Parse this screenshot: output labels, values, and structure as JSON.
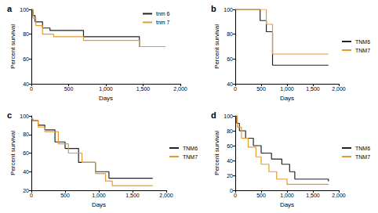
{
  "chart_data": [
    {
      "type": "line",
      "title": "a",
      "x_label": "Days",
      "y_label": "Percent survival",
      "xlim": [
        0,
        2000
      ],
      "xticks": [
        0,
        500,
        1000,
        1500,
        2000
      ],
      "ylim": [
        40,
        100
      ],
      "yticks": [
        40,
        60,
        80,
        100
      ],
      "grid": false,
      "legend": "upper right",
      "line_style": "step",
      "series": [
        {
          "name": "tnm 6",
          "color": "#222222",
          "x": [
            0,
            20,
            50,
            150,
            250,
            700,
            1450,
            1800
          ],
          "values": [
            100,
            95,
            90,
            85,
            83,
            78,
            70,
            70
          ]
        },
        {
          "name": "tnm 7",
          "color": "#e69a2e",
          "x": [
            0,
            20,
            60,
            150,
            300,
            700,
            1450,
            1800
          ],
          "values": [
            100,
            93,
            87,
            80,
            78,
            75,
            70,
            70
          ]
        }
      ]
    },
    {
      "type": "line",
      "title": "b",
      "x_label": "Days",
      "y_label": "Percent survival",
      "xlim": [
        0,
        2000
      ],
      "xticks": [
        0,
        500,
        1000,
        1500,
        2000
      ],
      "ylim": [
        40,
        100
      ],
      "yticks": [
        40,
        60,
        80,
        100
      ],
      "grid": false,
      "legend": "right",
      "line_style": "step",
      "series": [
        {
          "name": "TNM6",
          "color": "#222222",
          "x": [
            0,
            480,
            600,
            720,
            1800
          ],
          "values": [
            100,
            91,
            82,
            55,
            55
          ]
        },
        {
          "name": "TNM7",
          "color": "#e69a2e",
          "x": [
            0,
            600,
            720,
            1800
          ],
          "values": [
            100,
            88,
            64,
            64
          ]
        }
      ]
    },
    {
      "type": "line",
      "title": "c",
      "x_label": "Days",
      "y_label": "Percent survival",
      "xlim": [
        0,
        2000
      ],
      "xticks": [
        0,
        500,
        1000,
        1500,
        2000
      ],
      "ylim": [
        20,
        100
      ],
      "yticks": [
        20,
        40,
        60,
        80,
        100
      ],
      "grid": false,
      "legend": "right",
      "line_style": "step",
      "series": [
        {
          "name": "TNM6",
          "color": "#222222",
          "x": [
            0,
            20,
            100,
            200,
            350,
            500,
            700,
            950,
            1150,
            1800
          ],
          "values": [
            97,
            95,
            90,
            85,
            72,
            65,
            50,
            40,
            33,
            33
          ]
        },
        {
          "name": "TNM7",
          "color": "#e69a2e",
          "x": [
            0,
            20,
            100,
            200,
            400,
            550,
            750,
            950,
            1100,
            1200,
            1800
          ],
          "values": [
            97,
            95,
            88,
            83,
            70,
            60,
            50,
            38,
            30,
            25,
            25
          ]
        }
      ]
    },
    {
      "type": "line",
      "title": "d",
      "x_label": "Days",
      "y_label": "Percent survival",
      "xlim": [
        0,
        2000
      ],
      "xticks": [
        0,
        500,
        1000,
        1500,
        2000
      ],
      "ylim": [
        0,
        100
      ],
      "yticks": [
        0,
        20,
        40,
        60,
        80,
        100
      ],
      "grid": false,
      "legend": "right",
      "line_style": "step",
      "series": [
        {
          "name": "TNM6",
          "color": "#222222",
          "x": [
            0,
            30,
            80,
            200,
            350,
            500,
            700,
            900,
            1050,
            1150,
            1800
          ],
          "values": [
            100,
            90,
            80,
            70,
            60,
            50,
            42,
            35,
            25,
            15,
            12
          ]
        },
        {
          "name": "TNM7",
          "color": "#e69a2e",
          "x": [
            0,
            40,
            120,
            250,
            400,
            500,
            650,
            800,
            1000,
            1800
          ],
          "values": [
            100,
            85,
            70,
            58,
            45,
            35,
            25,
            15,
            8,
            8
          ]
        }
      ]
    }
  ]
}
